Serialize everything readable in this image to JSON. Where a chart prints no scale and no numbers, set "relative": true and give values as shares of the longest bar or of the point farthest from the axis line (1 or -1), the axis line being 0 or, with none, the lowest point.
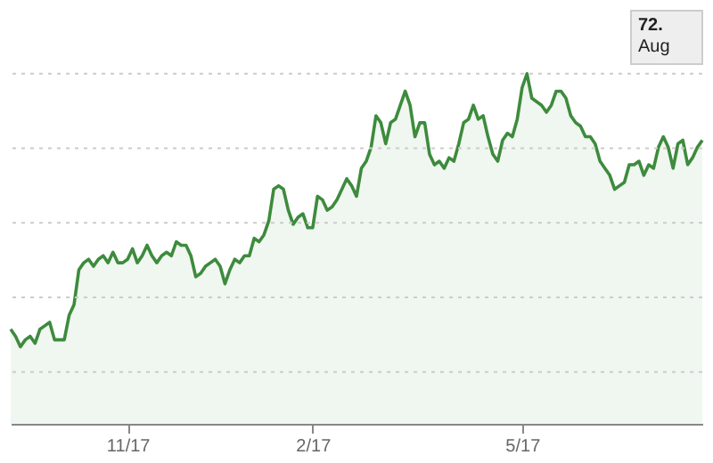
{
  "chart_data": {
    "type": "area",
    "relative": true,
    "categories": [
      null,
      null,
      null,
      null,
      null,
      null,
      null,
      null,
      null,
      null,
      null,
      null,
      null,
      null,
      null,
      null,
      null,
      null,
      null,
      null,
      null,
      null,
      null,
      null,
      "11/17",
      null,
      null,
      null,
      null,
      null,
      null,
      null,
      null,
      null,
      null,
      null,
      null,
      null,
      null,
      null,
      null,
      null,
      null,
      null,
      null,
      null,
      null,
      null,
      null,
      null,
      null,
      null,
      null,
      null,
      null,
      null,
      null,
      null,
      null,
      null,
      null,
      null,
      "2/17",
      null,
      null,
      null,
      null,
      null,
      null,
      null,
      null,
      null,
      null,
      null,
      null,
      null,
      null,
      null,
      null,
      null,
      null,
      null,
      null,
      null,
      null,
      null,
      null,
      null,
      null,
      null,
      null,
      null,
      null,
      null,
      null,
      null,
      null,
      null,
      null,
      null,
      null,
      null,
      null,
      null,
      null,
      "5/17",
      null,
      null,
      null,
      null,
      null,
      null,
      null,
      null,
      null,
      null,
      null,
      null,
      null,
      null,
      null,
      null,
      null,
      null,
      null,
      null,
      null,
      null,
      null,
      null,
      null,
      null,
      null,
      null,
      null,
      null,
      null,
      null,
      null,
      null,
      null,
      null,
      null
    ],
    "series": [
      {
        "color": "#3d8b3d",
        "values": [
          0.27,
          0.25,
          0.22,
          0.24,
          0.25,
          0.23,
          0.27,
          0.28,
          0.29,
          0.24,
          0.24,
          0.24,
          0.31,
          0.34,
          0.44,
          0.46,
          0.47,
          0.45,
          0.47,
          0.48,
          0.46,
          0.49,
          0.46,
          0.46,
          0.47,
          0.5,
          0.46,
          0.48,
          0.51,
          0.48,
          0.46,
          0.48,
          0.49,
          0.48,
          0.52,
          0.51,
          0.51,
          0.48,
          0.42,
          0.43,
          0.45,
          0.46,
          0.47,
          0.45,
          0.4,
          0.44,
          0.47,
          0.46,
          0.48,
          0.48,
          0.53,
          0.52,
          0.54,
          0.58,
          0.67,
          0.68,
          0.67,
          0.61,
          0.57,
          0.59,
          0.6,
          0.56,
          0.56,
          0.65,
          0.64,
          0.61,
          0.62,
          0.64,
          0.67,
          0.7,
          0.68,
          0.65,
          0.73,
          0.75,
          0.79,
          0.88,
          0.86,
          0.8,
          0.86,
          0.87,
          0.91,
          0.95,
          0.91,
          0.82,
          0.86,
          0.86,
          0.77,
          0.74,
          0.75,
          0.73,
          0.76,
          0.75,
          0.8,
          0.86,
          0.87,
          0.91,
          0.87,
          0.88,
          0.82,
          0.77,
          0.75,
          0.81,
          0.83,
          0.82,
          0.87,
          0.96,
          1.0,
          0.93,
          0.92,
          0.91,
          0.89,
          0.91,
          0.95,
          0.95,
          0.93,
          0.88,
          0.86,
          0.85,
          0.82,
          0.82,
          0.8,
          0.75,
          0.73,
          0.71,
          0.67,
          0.68,
          0.69,
          0.74,
          0.74,
          0.75,
          0.71,
          0.74,
          0.73,
          0.79,
          0.82,
          0.79,
          0.73,
          0.8,
          0.81,
          0.74,
          0.76,
          0.79,
          0.81
        ]
      }
    ],
    "tick_labels": "x",
    "grid": "y",
    "annotations": [
      "72.",
      "Aug"
    ]
  }
}
